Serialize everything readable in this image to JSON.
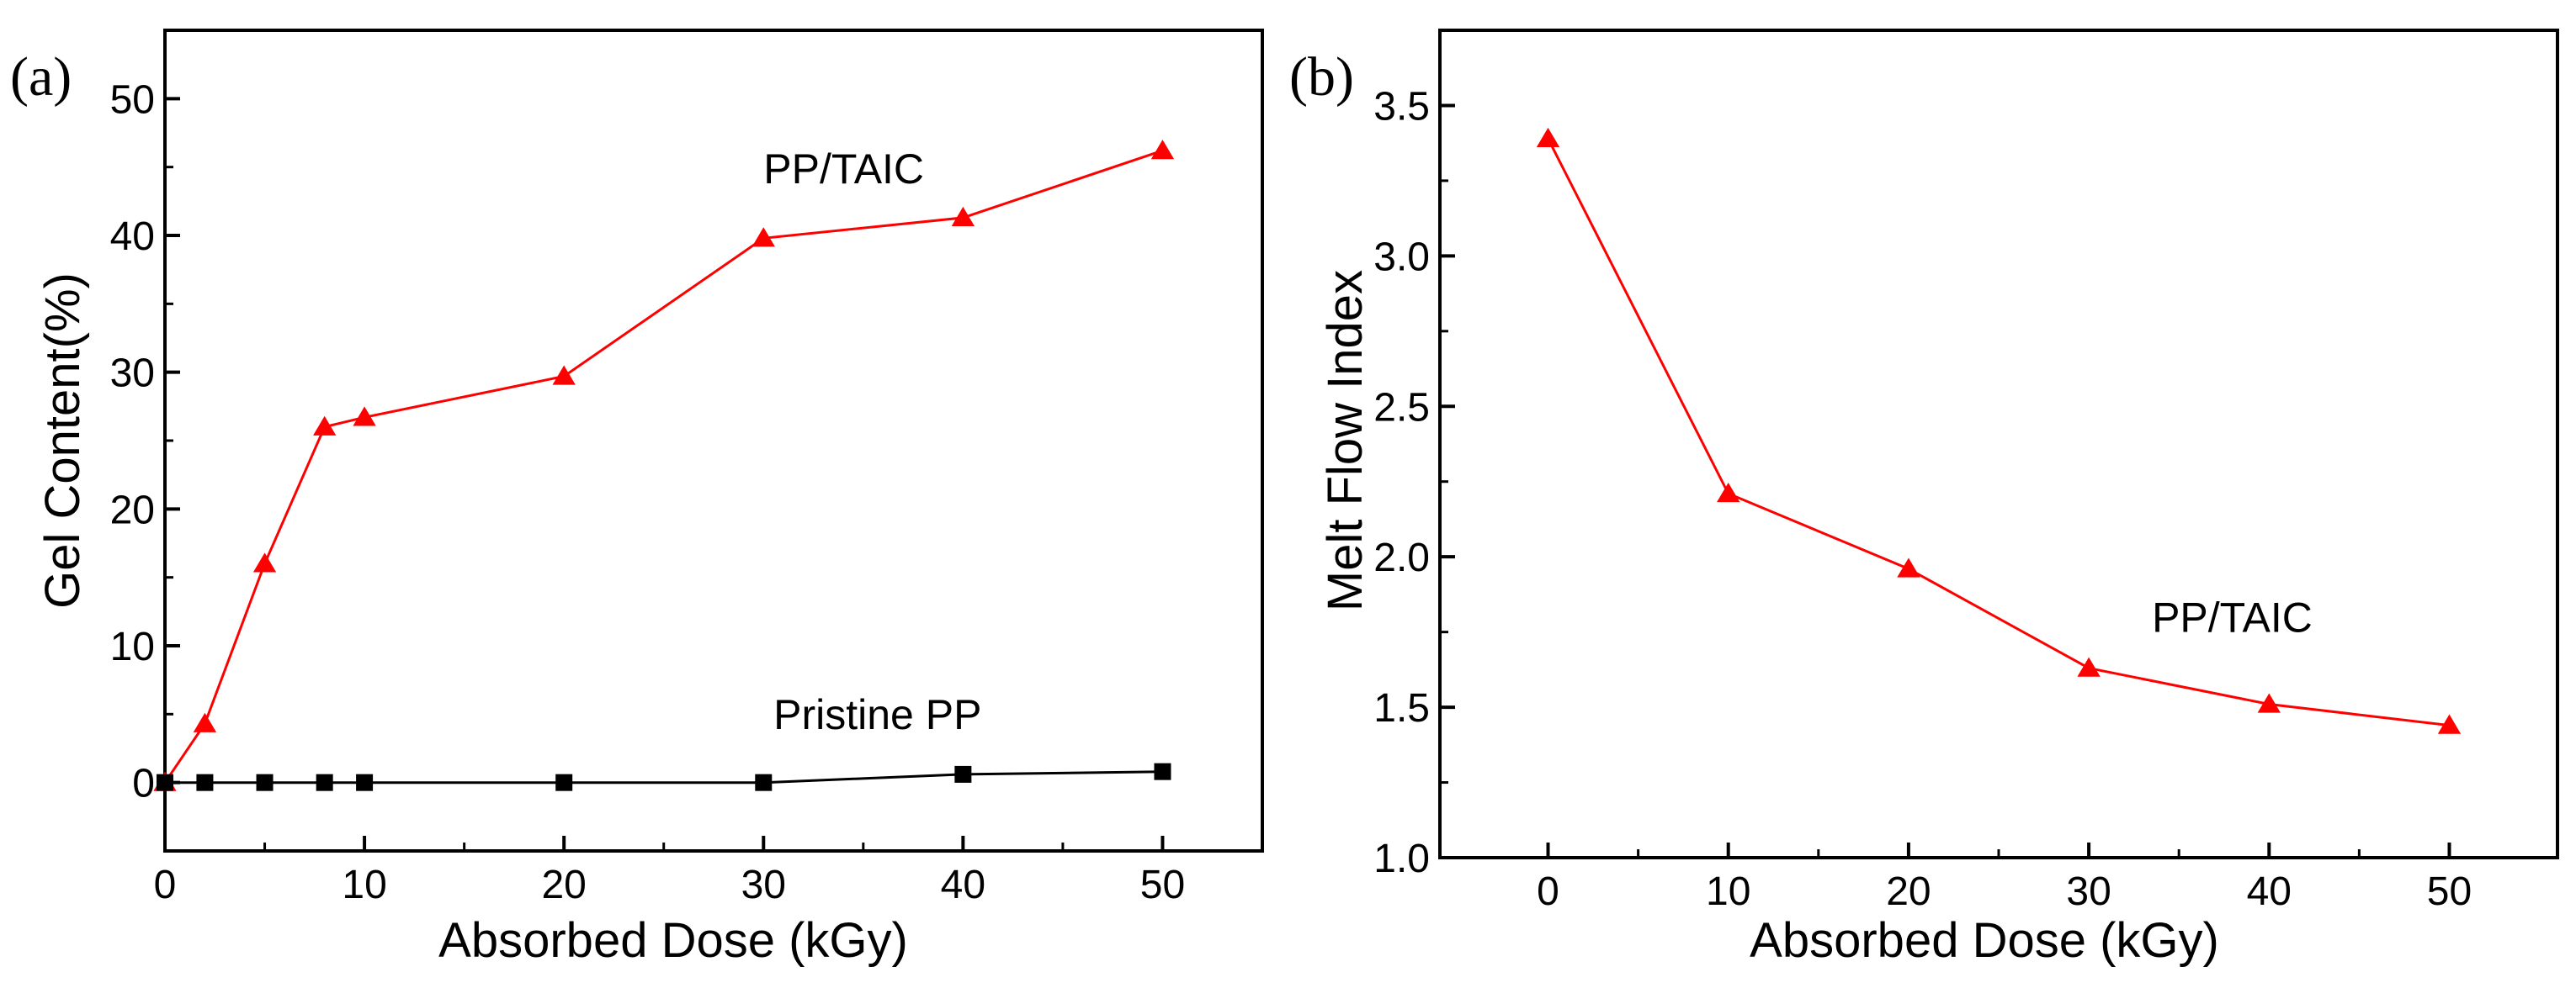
{
  "colors": {
    "axis": "#000000",
    "pp_taic": "#ff0000",
    "pristine": "#000000",
    "background": "#ffffff"
  },
  "chart_data": [
    {
      "panel_label": "(a)",
      "type": "line",
      "title": "",
      "xlabel": "Absorbed Dose  (kGy)",
      "ylabel": "Gel Content(%)",
      "xlim": [
        0,
        55
      ],
      "ylim": [
        -5,
        55
      ],
      "xticks": [
        0,
        10,
        20,
        30,
        40,
        50
      ],
      "yticks": [
        0,
        10,
        20,
        30,
        40,
        50
      ],
      "xtick_labels": [
        "0",
        "10",
        "20",
        "30",
        "40",
        "50"
      ],
      "ytick_labels": [
        "0",
        "10",
        "20",
        "30",
        "40",
        "50"
      ],
      "series": [
        {
          "name": "PP/TAIC",
          "marker": "triangle",
          "color": "#ff0000",
          "x": [
            0,
            2,
            5,
            8,
            10,
            20,
            30,
            40,
            50
          ],
          "y": [
            0,
            4.3,
            16.0,
            26.0,
            26.7,
            29.7,
            39.8,
            41.3,
            46.2
          ],
          "annotation": {
            "text": "PP/TAIC",
            "x": 30.0,
            "y": 43.8
          }
        },
        {
          "name": "Pristine PP",
          "marker": "square",
          "color": "#000000",
          "x": [
            0,
            2,
            5,
            8,
            10,
            20,
            30,
            40,
            50
          ],
          "y": [
            0,
            0,
            0,
            0,
            0,
            0,
            0,
            0.6,
            0.8
          ],
          "annotation": {
            "text": "Pristine PP",
            "x": 30.5,
            "y": 3.9
          }
        }
      ]
    },
    {
      "panel_label": "(b)",
      "type": "line",
      "title": "",
      "xlabel": "Absorbed Dose  (kGy)",
      "ylabel": "Melt Flow Index",
      "xlim": [
        -6,
        56
      ],
      "ylim": [
        1.0,
        3.75
      ],
      "xticks": [
        0,
        10,
        20,
        30,
        40,
        50
      ],
      "yticks": [
        1.0,
        1.5,
        2.0,
        2.5,
        3.0,
        3.5
      ],
      "xtick_labels": [
        "0",
        "10",
        "20",
        "30",
        "40",
        "50"
      ],
      "ytick_labels": [
        "1.0",
        "1.5",
        "2.0",
        "2.5",
        "3.0",
        "3.5"
      ],
      "series": [
        {
          "name": "PP/TAIC",
          "marker": "triangle",
          "color": "#ff0000",
          "x": [
            0,
            10,
            20,
            30,
            40,
            50
          ],
          "y": [
            3.39,
            2.21,
            1.96,
            1.63,
            1.51,
            1.44
          ],
          "annotation": {
            "text": "PP/TAIC",
            "x": 33.5,
            "y": 1.75
          }
        }
      ]
    }
  ]
}
